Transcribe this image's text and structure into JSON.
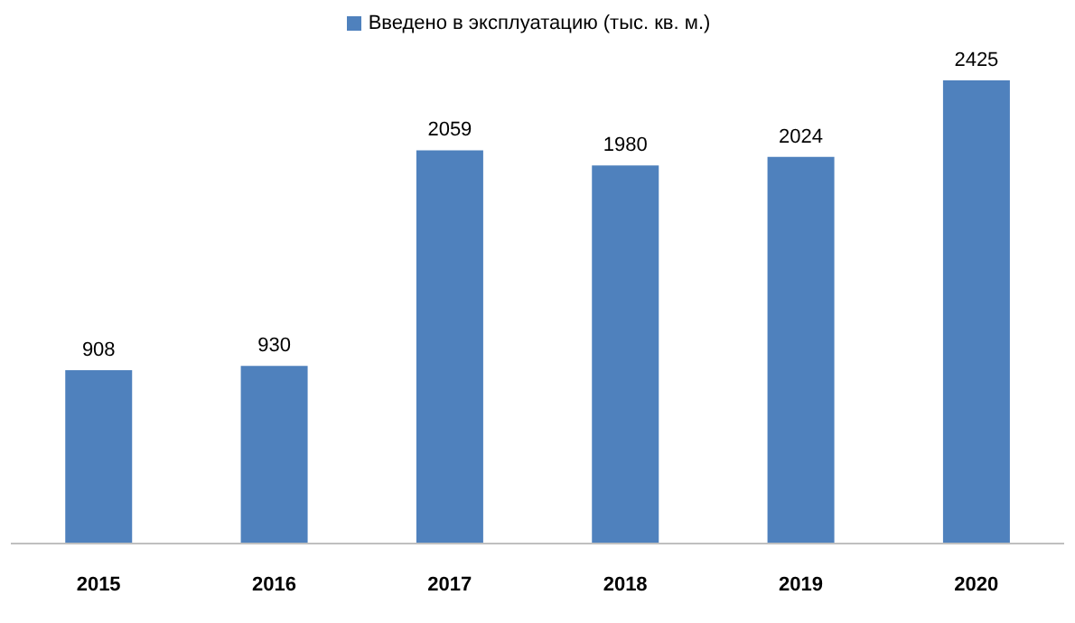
{
  "chart_data": {
    "type": "bar",
    "categories": [
      "2015",
      "2016",
      "2017",
      "2018",
      "2019",
      "2020"
    ],
    "series": [
      {
        "name": "Введено в эксплуатацию (тыс. кв. м.)",
        "color": "#4f81bd",
        "values": [
          908,
          930,
          2059,
          1980,
          2024,
          2425
        ]
      }
    ],
    "tick_labels": "x",
    "data_labels": true,
    "legend": "top",
    "grid": false
  }
}
